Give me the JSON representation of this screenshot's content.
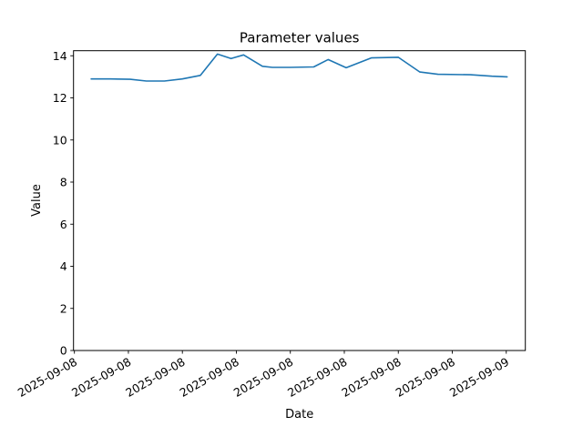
{
  "chart_data": {
    "type": "line",
    "title": "Parameter values",
    "xlabel": "Date",
    "ylabel": "Value",
    "x_tick_labels": [
      "2025-09-08",
      "2025-09-08",
      "2025-09-08",
      "2025-09-08",
      "2025-09-08",
      "2025-09-08",
      "2025-09-08",
      "2025-09-08",
      "2025-09-09"
    ],
    "x_tick_positions_hours": [
      0,
      3,
      6,
      9,
      12,
      15,
      18,
      21,
      24
    ],
    "xlim_hours": [
      -0.05,
      25.06
    ],
    "y_ticks": [
      0,
      2,
      4,
      6,
      8,
      10,
      12,
      14
    ],
    "ylim": [
      0,
      14.24
    ],
    "grid": false,
    "legend": "none",
    "line_color": "#1f77b4",
    "axis_color": "#000000",
    "background_color": "#ffffff",
    "series": [
      {
        "name": "Parameter",
        "x_hours": [
          0.93,
          2.0,
          3.1,
          4.0,
          5.0,
          6.0,
          7.0,
          7.95,
          8.7,
          9.4,
          10.45,
          11.0,
          12.0,
          13.3,
          14.1,
          15.1,
          16.5,
          18.0,
          19.2,
          20.2,
          22.0,
          23.2,
          24.05
        ],
        "values": [
          12.9,
          12.9,
          12.88,
          12.8,
          12.8,
          12.9,
          13.07,
          14.08,
          13.87,
          14.04,
          13.5,
          13.45,
          13.45,
          13.47,
          13.82,
          13.43,
          13.9,
          13.93,
          13.23,
          13.12,
          13.1,
          13.03,
          13.0
        ]
      }
    ]
  }
}
